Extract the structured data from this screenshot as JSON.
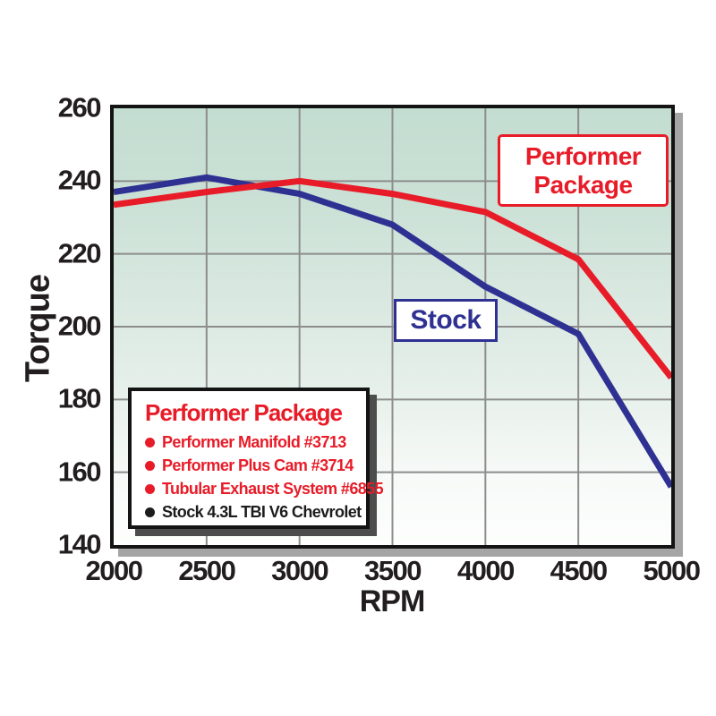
{
  "chart_data": {
    "type": "line",
    "xlabel": "RPM",
    "ylabel": "Torque",
    "x": [
      2000,
      2500,
      3000,
      3500,
      4000,
      4500,
      5000
    ],
    "xlim": [
      2000,
      5000
    ],
    "ylim": [
      140,
      260
    ],
    "x_ticks": [
      2000,
      2500,
      3000,
      3500,
      4000,
      4500,
      5000
    ],
    "y_ticks": [
      260,
      240,
      220,
      200,
      180,
      160,
      140
    ],
    "grid": true,
    "legend_position": "inside-bottom-left",
    "series": [
      {
        "name": "Performer Package",
        "color": "#e81c28",
        "values": [
          233.5,
          237,
          240,
          236.5,
          231.5,
          218.5,
          186
        ]
      },
      {
        "name": "Stock",
        "color": "#2e3192",
        "values": [
          237,
          241,
          236.5,
          228,
          211,
          198,
          156
        ]
      }
    ]
  },
  "labels": {
    "performer_callout": {
      "line1": "Performer",
      "line2": "Package"
    },
    "stock_callout": "Stock"
  },
  "legend": {
    "title": "Performer Package",
    "items": [
      {
        "text": "Performer Manifold #3713",
        "color": "#e81c28"
      },
      {
        "text": "Performer Plus Cam #3714",
        "color": "#e81c28"
      },
      {
        "text": "Tubular Exhaust System #6855",
        "color": "#e81c28"
      },
      {
        "text": "Stock 4.3L TBI V6 Chevrolet",
        "color": "#1c1c1c"
      }
    ]
  },
  "colors": {
    "performer_red": "#e81c28",
    "stock_blue": "#2e3192",
    "grid_gray": "#8d8d8d",
    "plot_bg_top": "#c4ddd1",
    "plot_bg_bottom": "#fdfefd"
  }
}
